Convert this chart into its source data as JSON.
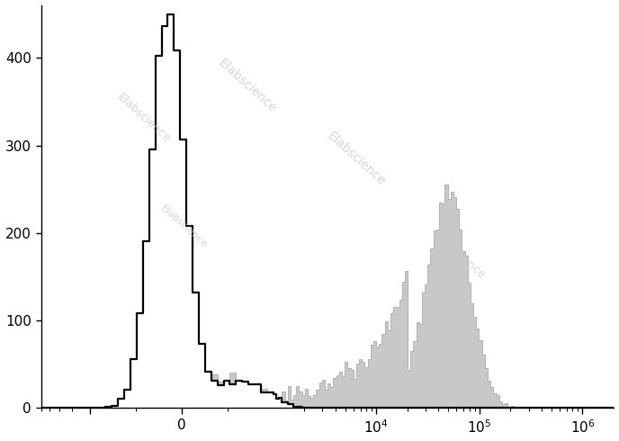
{
  "title": "",
  "xlabel": "",
  "ylabel": "",
  "ylim": [
    0,
    460
  ],
  "yticks": [
    0,
    100,
    200,
    300,
    400
  ],
  "background_color": "#ffffff",
  "watermark_text": "Elabscience",
  "watermark_color": "#c8c8c8",
  "gray_fill_color": "#c8c8c8",
  "gray_edge_color": "#aaaaaa",
  "black_line_color": "#000000",
  "black_peak_height": 450,
  "gray_peak_height": 255,
  "linthresh": 1000,
  "linscale": 0.8,
  "xlim_left": -3000,
  "xlim_right": 2000000,
  "seed": 12345
}
